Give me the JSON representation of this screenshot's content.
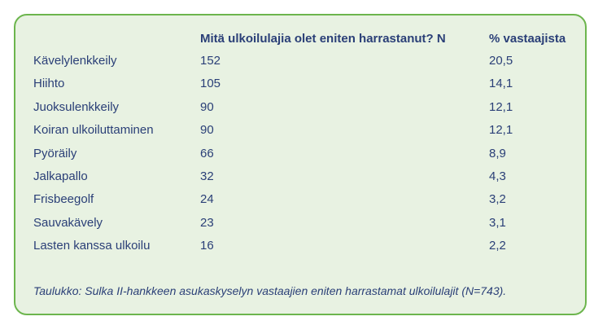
{
  "table": {
    "headers": {
      "question": "Mitä ulkoilulajia olet eniten harrastanut? N",
      "percent": "% vastaajista"
    },
    "rows": [
      {
        "activity": "Kävelylenkkeily",
        "n": "152",
        "percent": "20,5"
      },
      {
        "activity": "Hiihto",
        "n": "105",
        "percent": "14,1"
      },
      {
        "activity": "Juoksulenkkeily",
        "n": "90",
        "percent": "12,1"
      },
      {
        "activity": "Koiran ulkoiluttaminen",
        "n": "90",
        "percent": "12,1"
      },
      {
        "activity": "Pyöräily",
        "n": "66",
        "percent": "8,9"
      },
      {
        "activity": "Jalkapallo",
        "n": "32",
        "percent": "4,3"
      },
      {
        "activity": "Frisbeegolf",
        "n": "24",
        "percent": "3,2"
      },
      {
        "activity": "Sauvakävely",
        "n": "23",
        "percent": "3,1"
      },
      {
        "activity": "Lasten kanssa ulkoilu",
        "n": "16",
        "percent": "2,2"
      }
    ],
    "caption": "Taulukko: Sulka II-hankkeen asukaskyselyn vastaajien eniten harrastamat ulkoilulajit (N=743)."
  },
  "colors": {
    "border": "#6cb54d",
    "background": "#e8f2e2",
    "text": "#2a3f77"
  }
}
